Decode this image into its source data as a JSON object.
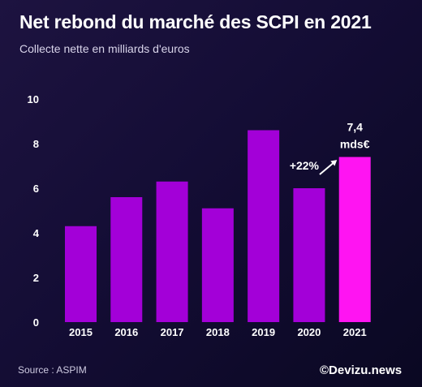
{
  "title": "Net rebond du marché des SCPI en 2021",
  "subtitle": "Collecte nette en milliards d'euros",
  "source": "Source : ASPIM",
  "brand": "©Devizu.news",
  "colors": {
    "bar": "#a300d8",
    "highlight_bar": "#ff14f2",
    "text": "#ffffff"
  },
  "chart_data": {
    "type": "bar",
    "categories": [
      "2015",
      "2016",
      "2017",
      "2018",
      "2019",
      "2020",
      "2021"
    ],
    "values": [
      4.3,
      5.6,
      6.3,
      5.1,
      8.6,
      6.0,
      7.4
    ],
    "highlight_index": 6,
    "ylim": [
      0,
      10
    ],
    "yticks": [
      "0",
      "2",
      "4",
      "6",
      "8",
      "10"
    ],
    "annotations": {
      "growth": "+22%",
      "last_value_line1": "7,4",
      "last_value_line2": "mds€"
    }
  }
}
